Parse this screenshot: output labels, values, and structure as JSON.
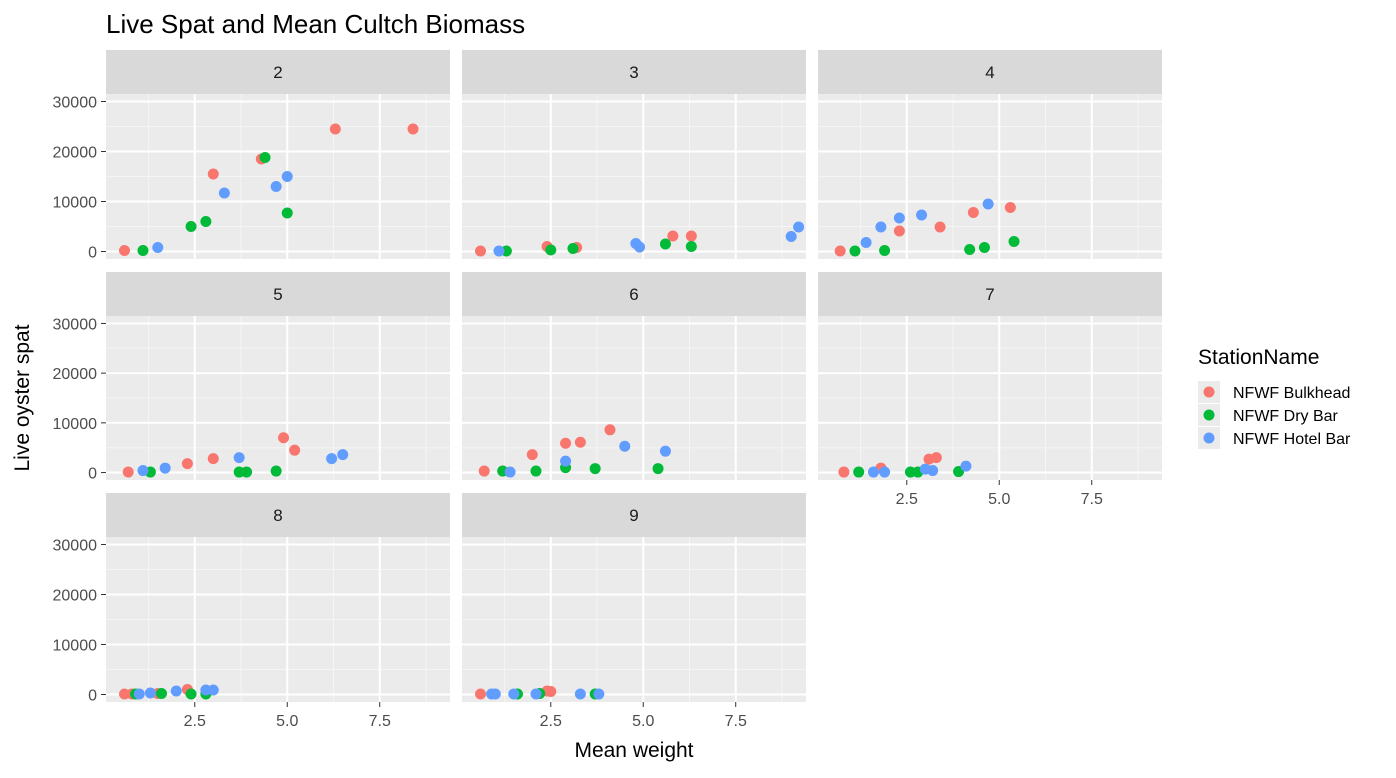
{
  "chart_data": {
    "type": "scatter",
    "title": "Live Spat and Mean Cultch Biomass",
    "xlabel": "Mean weight",
    "ylabel": "Live oyster spat",
    "xlim": [
      0.1,
      9.4
    ],
    "ylim": [
      -1500,
      31500
    ],
    "x_ticks": [
      2.5,
      5.0,
      7.5
    ],
    "x_tick_labels": [
      "2.5",
      "5.0",
      "7.5"
    ],
    "y_ticks": [
      0,
      10000,
      20000,
      30000
    ],
    "y_tick_labels": [
      "0",
      "10000",
      "20000",
      "30000"
    ],
    "grid": true,
    "legend": {
      "title": "StationName",
      "position": "right",
      "entries": [
        {
          "name": "NFWF Bulkhead",
          "color": "#F8766D"
        },
        {
          "name": "NFWF Dry Bar",
          "color": "#00BA38"
        },
        {
          "name": "NFWF Hotel Bar",
          "color": "#619CFF"
        }
      ]
    },
    "facet_layout": {
      "columns": 3,
      "rows": 3
    },
    "facets": [
      {
        "label": "2",
        "series": [
          {
            "name": "NFWF Bulkhead",
            "x": [
              0.6,
              3.0,
              4.3,
              6.3,
              8.4
            ],
            "y": [
              200,
              15500,
              18500,
              24500,
              24500
            ]
          },
          {
            "name": "NFWF Dry Bar",
            "x": [
              1.1,
              2.4,
              2.8,
              4.4,
              5.0
            ],
            "y": [
              200,
              5000,
              6000,
              18800,
              7700
            ]
          },
          {
            "name": "NFWF Hotel Bar",
            "x": [
              1.5,
              3.3,
              4.7,
              5.0
            ],
            "y": [
              800,
              11700,
              13000,
              15000
            ]
          }
        ]
      },
      {
        "label": "3",
        "series": [
          {
            "name": "NFWF Bulkhead",
            "x": [
              0.6,
              2.4,
              3.2,
              5.8,
              6.3
            ],
            "y": [
              100,
              1000,
              800,
              3100,
              3100
            ]
          },
          {
            "name": "NFWF Dry Bar",
            "x": [
              1.3,
              2.5,
              3.1,
              5.6,
              6.3
            ],
            "y": [
              100,
              300,
              600,
              1500,
              1000
            ]
          },
          {
            "name": "NFWF Hotel Bar",
            "x": [
              1.1,
              4.8,
              4.9,
              9.0,
              9.2
            ],
            "y": [
              100,
              1600,
              900,
              3000,
              4900
            ]
          }
        ]
      },
      {
        "label": "4",
        "series": [
          {
            "name": "NFWF Bulkhead",
            "x": [
              0.7,
              2.3,
              3.4,
              4.3,
              5.3
            ],
            "y": [
              100,
              4100,
              4900,
              7800,
              8800
            ]
          },
          {
            "name": "NFWF Dry Bar",
            "x": [
              1.1,
              1.9,
              4.2,
              4.6,
              5.4
            ],
            "y": [
              100,
              200,
              400,
              800,
              2000
            ]
          },
          {
            "name": "NFWF Hotel Bar",
            "x": [
              1.4,
              1.8,
              2.3,
              2.9,
              4.7
            ],
            "y": [
              1800,
              4900,
              6700,
              7300,
              9500
            ]
          }
        ]
      },
      {
        "label": "5",
        "series": [
          {
            "name": "NFWF Bulkhead",
            "x": [
              0.7,
              2.3,
              3.0,
              4.9,
              5.2
            ],
            "y": [
              100,
              1800,
              2800,
              7000,
              4500
            ]
          },
          {
            "name": "NFWF Dry Bar",
            "x": [
              1.3,
              3.7,
              3.9,
              4.7
            ],
            "y": [
              100,
              100,
              100,
              300
            ]
          },
          {
            "name": "NFWF Hotel Bar",
            "x": [
              1.1,
              1.7,
              3.7,
              6.2,
              6.5
            ],
            "y": [
              400,
              900,
              3000,
              2800,
              3600
            ]
          }
        ]
      },
      {
        "label": "6",
        "series": [
          {
            "name": "NFWF Bulkhead",
            "x": [
              0.7,
              2.0,
              2.9,
              3.3,
              4.1
            ],
            "y": [
              300,
              3600,
              5900,
              6100,
              8600
            ]
          },
          {
            "name": "NFWF Dry Bar",
            "x": [
              1.2,
              2.1,
              2.9,
              3.7,
              5.4
            ],
            "y": [
              300,
              300,
              1000,
              800,
              800
            ]
          },
          {
            "name": "NFWF Hotel Bar",
            "x": [
              1.4,
              2.9,
              4.5,
              5.6
            ],
            "y": [
              100,
              2300,
              5300,
              4300
            ]
          }
        ]
      },
      {
        "label": "7",
        "series": [
          {
            "name": "NFWF Bulkhead",
            "x": [
              0.8,
              1.8,
              3.1,
              3.3
            ],
            "y": [
              100,
              900,
              2700,
              3000
            ]
          },
          {
            "name": "NFWF Dry Bar",
            "x": [
              1.2,
              2.6,
              2.8,
              3.9
            ],
            "y": [
              100,
              100,
              100,
              200
            ]
          },
          {
            "name": "NFWF Hotel Bar",
            "x": [
              1.6,
              1.9,
              3.0,
              3.2,
              4.1
            ],
            "y": [
              100,
              100,
              700,
              400,
              1300
            ]
          }
        ]
      },
      {
        "label": "8",
        "series": [
          {
            "name": "NFWF Bulkhead",
            "x": [
              0.6,
              0.8,
              1.5,
              2.3
            ],
            "y": [
              100,
              100,
              200,
              1000
            ]
          },
          {
            "name": "NFWF Dry Bar",
            "x": [
              0.9,
              1.6,
              2.4,
              2.8
            ],
            "y": [
              100,
              200,
              100,
              100
            ]
          },
          {
            "name": "NFWF Hotel Bar",
            "x": [
              1.0,
              1.3,
              2.0,
              2.8,
              3.0
            ],
            "y": [
              100,
              300,
              700,
              900,
              900
            ]
          }
        ]
      },
      {
        "label": "9",
        "series": [
          {
            "name": "NFWF Bulkhead",
            "x": [
              0.6,
              2.4,
              2.5
            ],
            "y": [
              100,
              700,
              600
            ]
          },
          {
            "name": "NFWF Dry Bar",
            "x": [
              1.6,
              2.2,
              3.7
            ],
            "y": [
              100,
              200,
              100
            ]
          },
          {
            "name": "NFWF Hotel Bar",
            "x": [
              0.9,
              1.0,
              1.5,
              2.1,
              3.3,
              3.8
            ],
            "y": [
              100,
              100,
              100,
              100,
              100,
              100
            ]
          }
        ]
      }
    ]
  }
}
